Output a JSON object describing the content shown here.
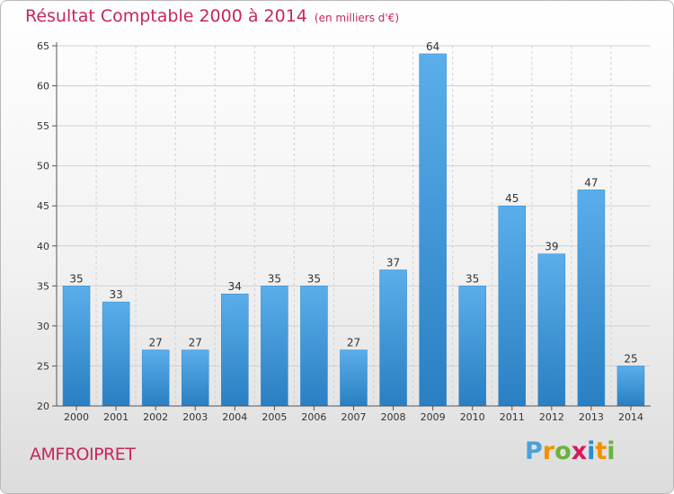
{
  "chart_data": {
    "type": "bar",
    "title": "Résultat Comptable 2000 à 2014",
    "subtitle": "(en milliers d'€)",
    "categories": [
      "2000",
      "2001",
      "2002",
      "2003",
      "2004",
      "2005",
      "2006",
      "2007",
      "2008",
      "2009",
      "2010",
      "2011",
      "2012",
      "2013",
      "2014"
    ],
    "values": [
      35,
      33,
      27,
      27,
      34,
      35,
      35,
      27,
      37,
      64,
      35,
      45,
      39,
      47,
      25
    ],
    "ylim": [
      20,
      65
    ],
    "yticks": [
      20,
      25,
      30,
      35,
      40,
      45,
      50,
      55,
      60,
      65
    ],
    "xlabel": "",
    "ylabel": "",
    "grid": true,
    "bar_color": "#3d95d8"
  },
  "commune_name": "AMFROIPRET",
  "logo": {
    "text": "Proxiti",
    "letters": [
      "P",
      "r",
      "o",
      "x",
      "i",
      "t",
      "i"
    ],
    "colors": [
      "#4aa1dc",
      "#f29100",
      "#6ab23d",
      "#d6195c",
      "#2b8ccf",
      "#f29100",
      "#6ab23d"
    ]
  },
  "colors": {
    "title": "#c7265a",
    "grid": "#d0d0d0",
    "axis": "#555555"
  }
}
